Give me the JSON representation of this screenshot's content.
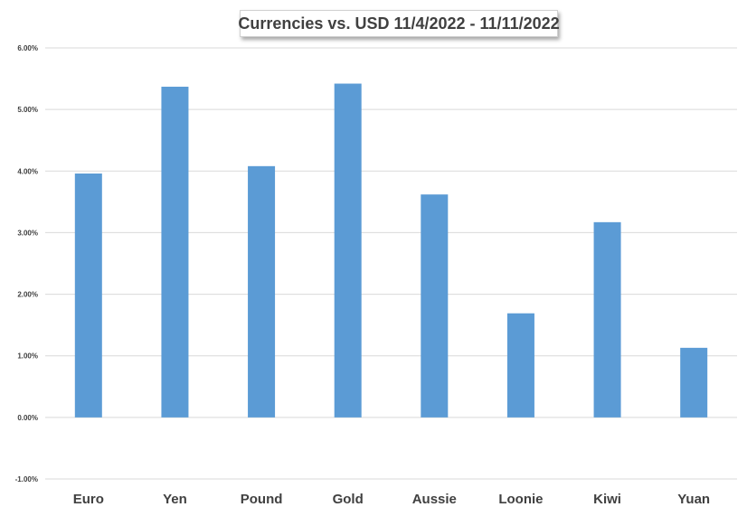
{
  "chart_data": {
    "type": "bar",
    "title": "Currencies vs. USD 11/4/2022 - 11/11/2022",
    "xlabel": "",
    "ylabel": "",
    "categories": [
      "Euro",
      "Yen",
      "Pound",
      "Gold",
      "Aussie",
      "Loonie",
      "Kiwi",
      "Yuan"
    ],
    "values": [
      3.96,
      5.37,
      4.08,
      5.42,
      3.62,
      1.69,
      3.17,
      1.13
    ],
    "ylim": [
      -1,
      6
    ],
    "yticks": [
      {
        "value": -1,
        "label": "-1.00%"
      },
      {
        "value": 0,
        "label": "0.00%"
      },
      {
        "value": 1,
        "label": "1.00%"
      },
      {
        "value": 2,
        "label": "2.00%"
      },
      {
        "value": 3,
        "label": "3.00%"
      },
      {
        "value": 4,
        "label": "4.00%"
      },
      {
        "value": 5,
        "label": "5.00%"
      },
      {
        "value": 6,
        "label": "6.00%"
      }
    ],
    "grid": true,
    "legend": "none",
    "bar_color": "#5b9bd5",
    "grid_color": "#d9d9d9",
    "tick_label_color": "#404040"
  }
}
